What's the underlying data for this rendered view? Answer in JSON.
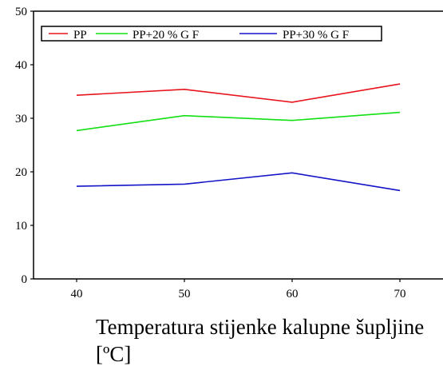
{
  "chart_data": {
    "type": "line",
    "title": "",
    "xlabel": "Temperatura stijenke kalupne šupljine [ºC]",
    "ylabel": "",
    "x": [
      40,
      50,
      60,
      70
    ],
    "xticks": [
      "40",
      "50",
      "60",
      "70"
    ],
    "yticks": [
      "0",
      "10",
      "20",
      "30",
      "40",
      "50"
    ],
    "xlim": [
      36,
      74
    ],
    "ylim": [
      0,
      50
    ],
    "grid": false,
    "legend_position": "top",
    "series": [
      {
        "name": "PP",
        "color": "#e8141c",
        "values": [
          34.3,
          35.4,
          33.0,
          36.4
        ]
      },
      {
        "name": "PP+20 % G F",
        "color": "#12e012",
        "values": [
          27.7,
          30.5,
          29.6,
          31.1
        ]
      },
      {
        "name": "PP+30 % G F",
        "color": "#1414c8",
        "values": [
          17.3,
          17.7,
          19.8,
          16.5
        ]
      }
    ]
  }
}
